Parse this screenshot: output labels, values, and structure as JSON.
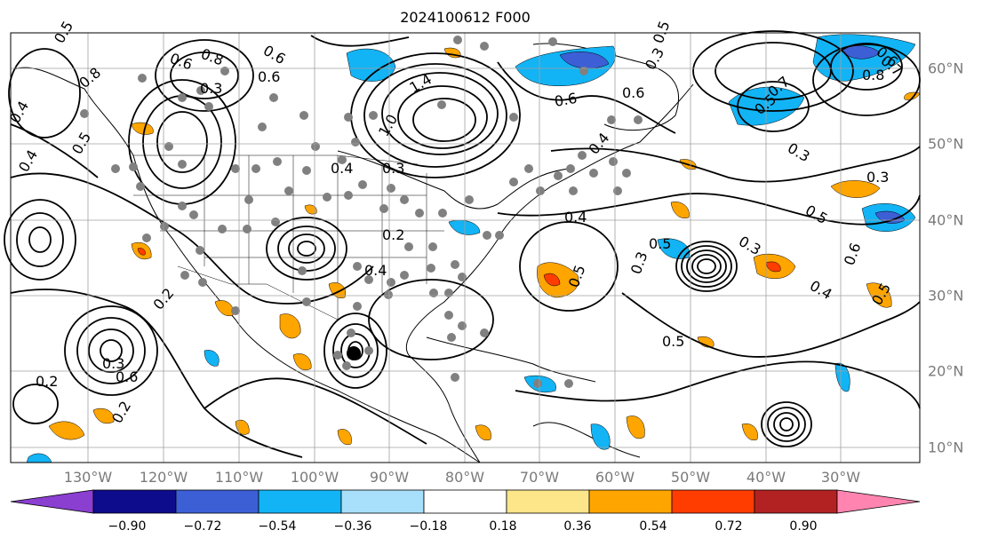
{
  "title": "2024100612 F000",
  "longitude_labels": [
    "130°W",
    "120°W",
    "110°W",
    "100°W",
    "90°W",
    "80°W",
    "70°W",
    "60°W",
    "50°W",
    "40°W",
    "30°W"
  ],
  "latitude_labels": [
    "60°N",
    "50°N",
    "40°N",
    "30°N",
    "20°N",
    "10°N"
  ],
  "colorbar": {
    "ticks": [
      "−0.90",
      "−0.72",
      "−0.54",
      "−0.36",
      "−0.18",
      "0.18",
      "0.36",
      "0.54",
      "0.72",
      "0.90"
    ],
    "colors": [
      "#8a3fd1",
      "#0c0c8c",
      "#3c5fd6",
      "#12b4f5",
      "#a8e0fb",
      "#ffffff",
      "#fde68a",
      "#ffa500",
      "#ff3d00",
      "#b22222",
      "#ff85b0"
    ]
  },
  "contour_labels": [
    "0.5",
    "0.6",
    "0.8",
    "0.3",
    "0.8",
    "0.6",
    "0.4",
    "0.5",
    "0.4",
    "0.6",
    "1.4",
    "1.0",
    "0.3",
    "0.4",
    "0.6",
    "0.5",
    "0.3",
    "0.6",
    "0.4",
    "0.3",
    "0.2",
    "0.4",
    "0.2",
    "0.5",
    "0.2",
    "0.2",
    "0.3",
    "0.5",
    "0.6",
    "0.7",
    "0.8",
    "0.7",
    "0.5",
    "0.3",
    "0.4",
    "0.5",
    "0.3",
    "0.6",
    "0.5",
    "0.3",
    "0.6",
    "0.5",
    "0.4"
  ],
  "fill_colors": {
    "blue": "#12b4f5",
    "dark_blue": "#3c5fd6",
    "orange": "#ffa500",
    "red": "#ff3d00"
  },
  "marker_color": "#808080"
}
